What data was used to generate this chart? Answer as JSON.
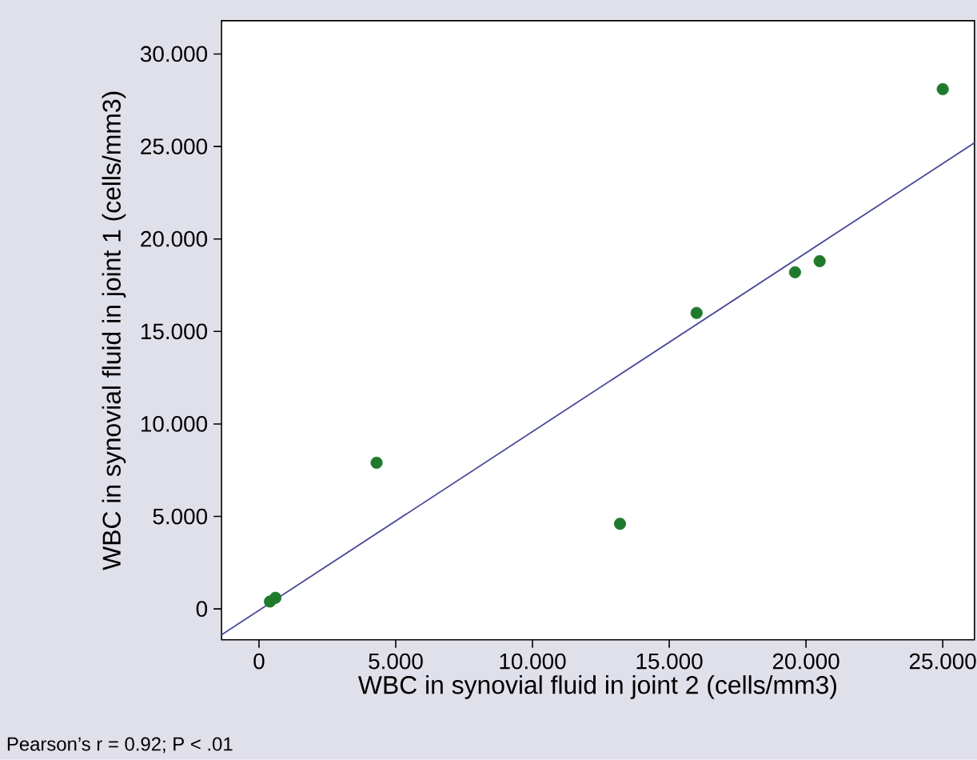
{
  "chart_data": {
    "type": "scatter",
    "xlabel": "WBC in synovial fluid in joint 2 (cells/mm3)",
    "ylabel": "WBC in synovial fluid in joint 1 (cells/mm3)",
    "annotations": [
      "Pearson’s r = 0.92; P < .01"
    ],
    "xlim": [
      -1.37,
      26.16
    ],
    "ylim": [
      -1.67,
      31.8
    ],
    "xticks": [
      0,
      {
        "value": 5,
        "label": "5.000"
      },
      {
        "value": 10,
        "label": "10.000"
      },
      {
        "value": 15,
        "label": "15.000"
      },
      {
        "value": 20,
        "label": "20.000"
      },
      {
        "value": 25,
        "label": "25.000"
      }
    ],
    "yticks": [
      0,
      {
        "value": 5,
        "label": "5.000"
      },
      {
        "value": 10,
        "label": "10.000"
      },
      {
        "value": 15,
        "label": "15.000"
      },
      {
        "value": 20,
        "label": "20.000"
      },
      {
        "value": 25,
        "label": "25.000"
      },
      {
        "value": 30,
        "label": "30.000"
      }
    ],
    "grid": false,
    "series": [
      {
        "color": "#1f7a2c",
        "marker": "circle",
        "x": [
          0.4,
          0.6,
          4.3,
          13.2,
          16.0,
          19.6,
          20.5,
          25.0
        ],
        "values": [
          0.4,
          0.6,
          7.9,
          4.6,
          16.0,
          18.2,
          18.8,
          28.1
        ]
      },
      {
        "type": "line",
        "color": "#4a4a9a",
        "marker": "none",
        "line_style": "solid",
        "x": [
          -1.37,
          26.16
        ],
        "values": [
          -1.4,
          25.2
        ]
      }
    ]
  }
}
